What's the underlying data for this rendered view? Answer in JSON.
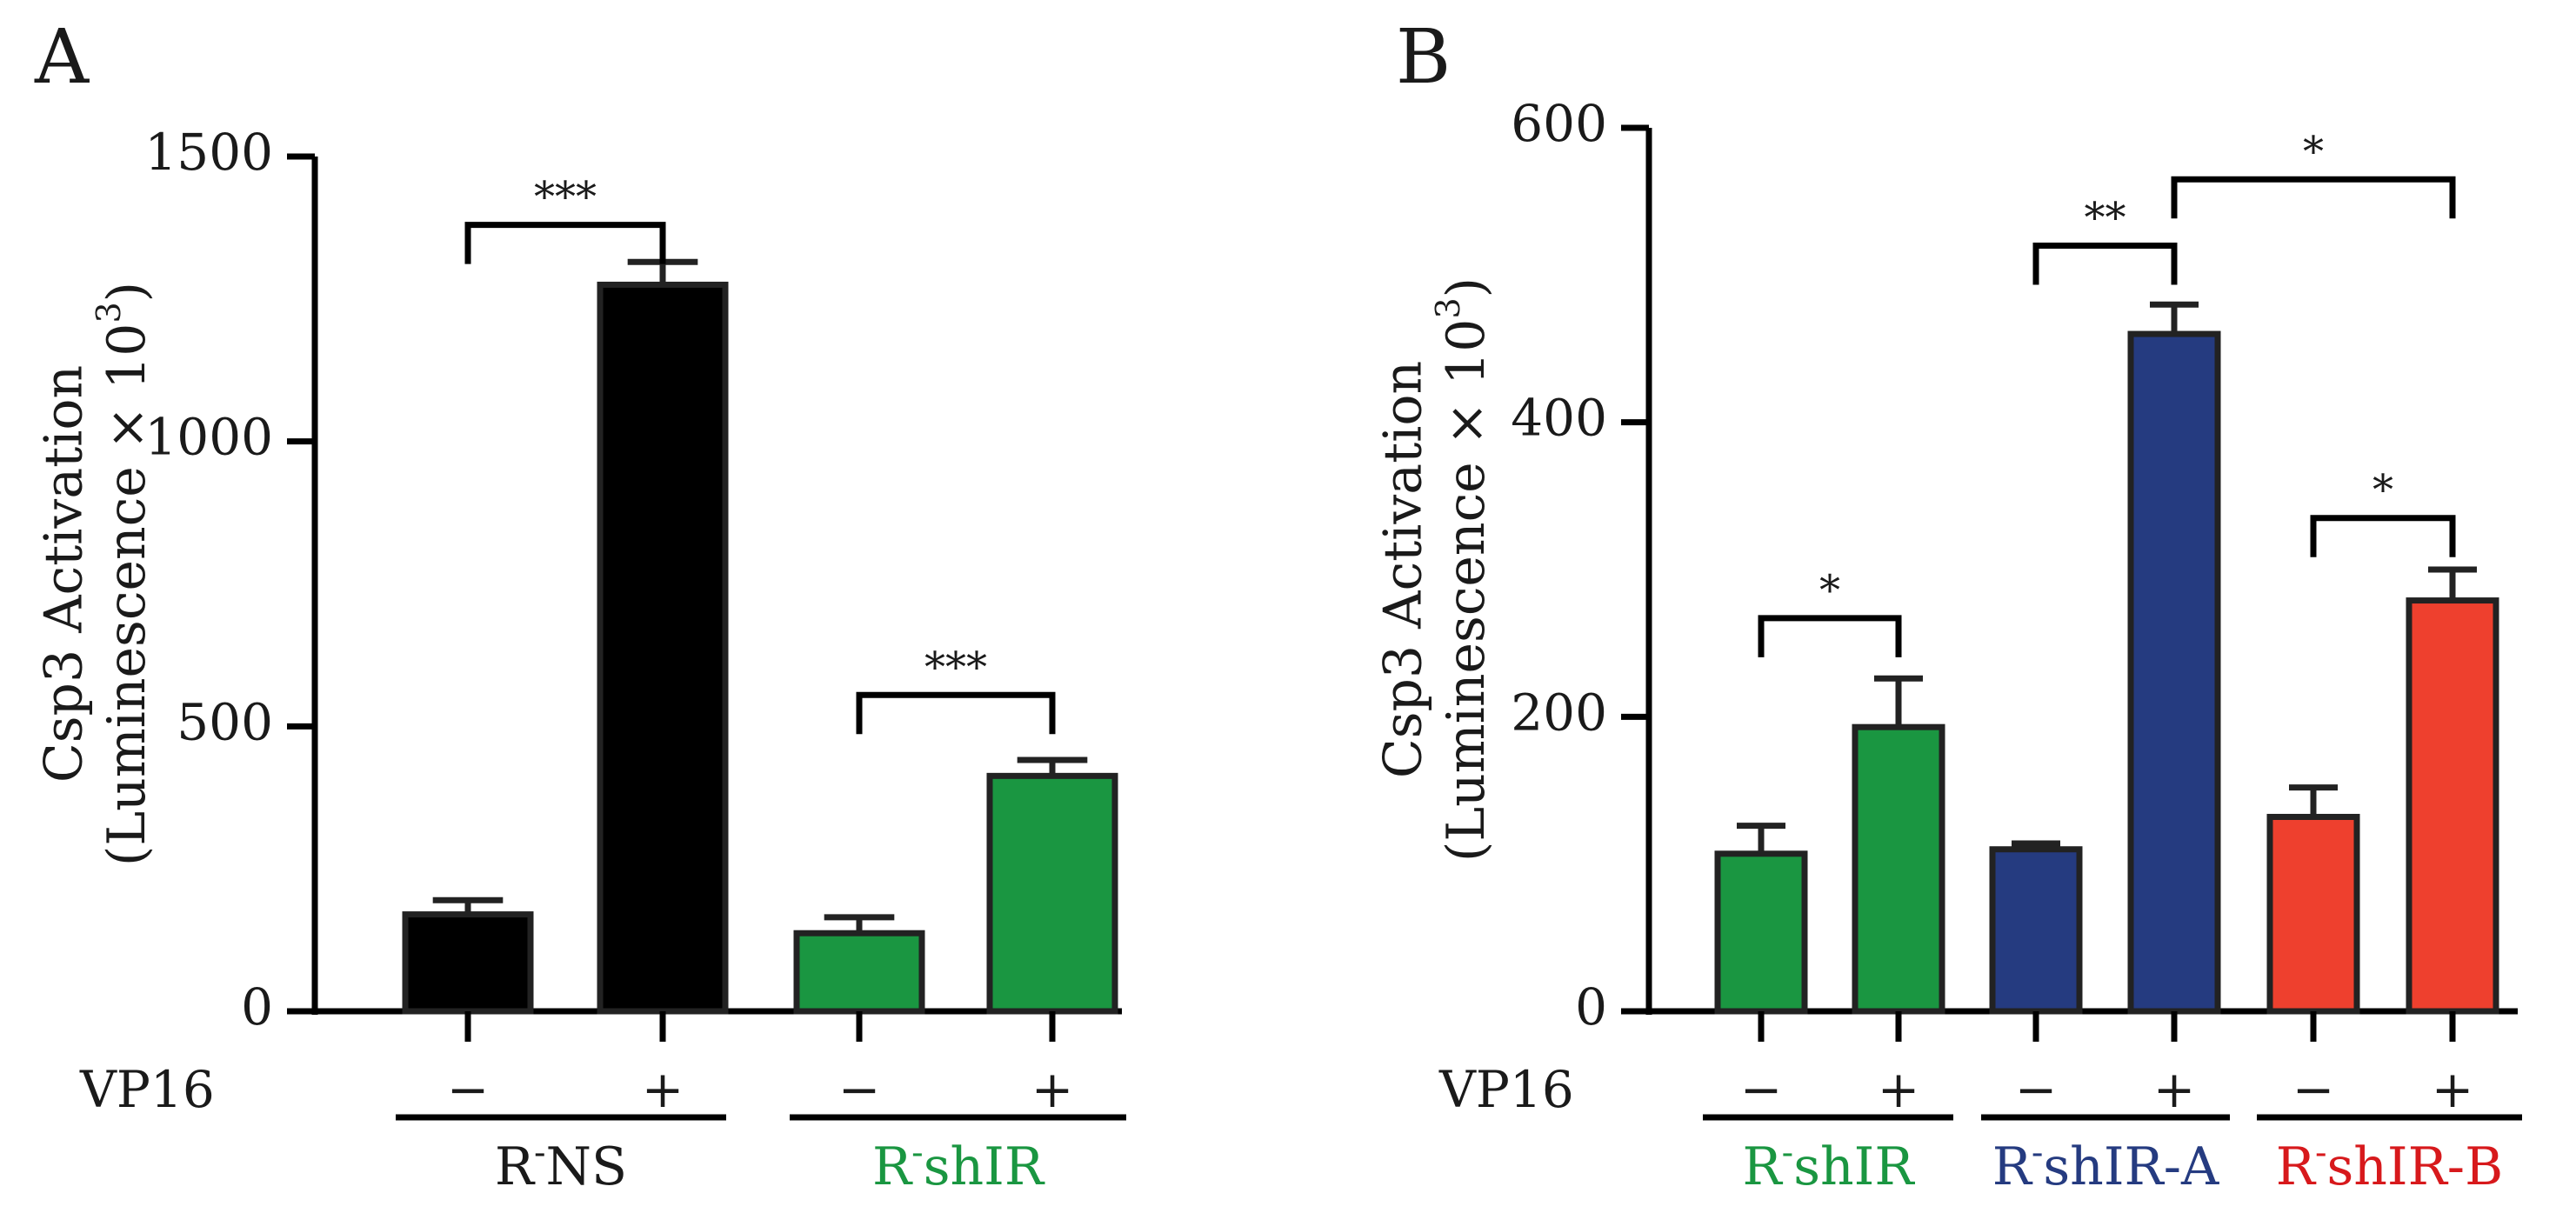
{
  "chart_data": [
    {
      "panel": "A",
      "type": "bar",
      "ylabel_line1": "Csp3 Activation",
      "ylabel_line2_prefix": "(Luminescence × 10",
      "ylabel_line2_exp": "3",
      "ylabel_line2_suffix": ")",
      "ylim": [
        0,
        1500
      ],
      "yticks": [
        0,
        500,
        1000,
        1500
      ],
      "treatment_label": "VP16",
      "bars": [
        {
          "group": "R-NS",
          "vp16": "−",
          "value": 170,
          "error": 25,
          "color": "#000000"
        },
        {
          "group": "R-NS",
          "vp16": "+",
          "value": 1275,
          "error": 40,
          "color": "#000000"
        },
        {
          "group": "R-shIR",
          "vp16": "−",
          "value": 137,
          "error": 28,
          "color": "#1a9641"
        },
        {
          "group": "R-shIR",
          "vp16": "+",
          "value": 413,
          "error": 28,
          "color": "#1a9641"
        }
      ],
      "groups": [
        {
          "name": "R-NS",
          "sup": "-",
          "base": "R",
          "rest": "NS",
          "color": "#1a1a1a"
        },
        {
          "name": "R-shIR",
          "sup": "-",
          "base": "R",
          "rest": "shIR",
          "color": "#1a9641"
        }
      ],
      "comparisons": [
        {
          "from": 0,
          "to": 1,
          "label": "***",
          "level": 1380
        },
        {
          "from": 2,
          "to": 3,
          "label": "***",
          "level": 555
        }
      ]
    },
    {
      "panel": "B",
      "type": "bar",
      "ylabel_line1": "Csp3 Activation",
      "ylabel_line2_prefix": "(Luminescence × 10",
      "ylabel_line2_exp": "3",
      "ylabel_line2_suffix": ")",
      "ylim": [
        0,
        600
      ],
      "yticks": [
        0,
        200,
        400,
        600
      ],
      "treatment_label": "VP16",
      "bars": [
        {
          "group": "R-shIR",
          "vp16": "−",
          "value": 107,
          "error": 19,
          "color": "#1a9641"
        },
        {
          "group": "R-shIR",
          "vp16": "+",
          "value": 193,
          "error": 33,
          "color": "#1a9641"
        },
        {
          "group": "R-shIR-A",
          "vp16": "−",
          "value": 110,
          "error": 4,
          "color": "#253b80"
        },
        {
          "group": "R-shIR-A",
          "vp16": "+",
          "value": 460,
          "error": 20,
          "color": "#253b80"
        },
        {
          "group": "R-shIR-B",
          "vp16": "−",
          "value": 132,
          "error": 20,
          "color": "#ee402e"
        },
        {
          "group": "R-shIR-B",
          "vp16": "+",
          "value": 279,
          "error": 21,
          "color": "#ee402e"
        }
      ],
      "groups": [
        {
          "name": "R-shIR",
          "sup": "-",
          "base": "R",
          "rest": "shIR",
          "color": "#1a9641"
        },
        {
          "name": "R-shIR-A",
          "sup": "-",
          "base": "R",
          "rest": "shIR-A",
          "color": "#253b80"
        },
        {
          "name": "R-shIR-B",
          "sup": "-",
          "base": "R",
          "rest": "shIR-B",
          "color": "#d7191c"
        }
      ],
      "comparisons": [
        {
          "from": 0,
          "to": 1,
          "label": "*",
          "level": 267
        },
        {
          "from": 2,
          "to": 3,
          "label": "**",
          "level": 520
        },
        {
          "from": 3,
          "to": 5,
          "label": "*",
          "level": 565
        },
        {
          "from": 4,
          "to": 5,
          "label": "*",
          "level": 335
        }
      ]
    }
  ]
}
